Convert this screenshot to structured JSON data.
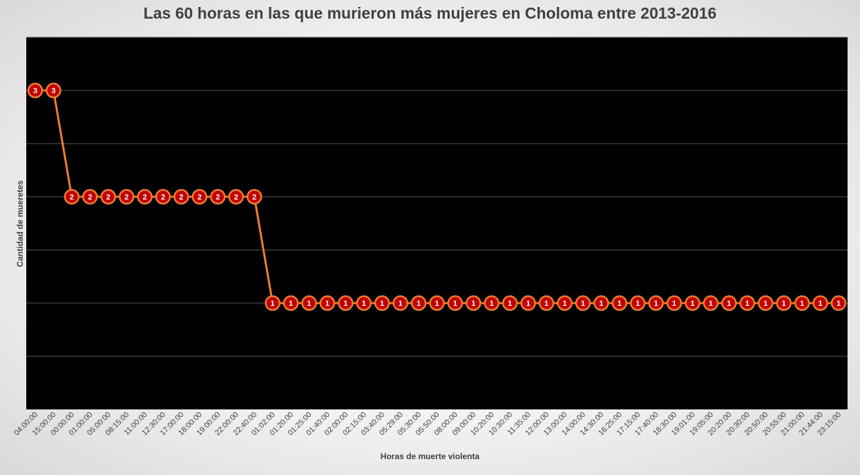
{
  "chart_data": {
    "type": "line",
    "title": "Las 60 horas en las que murieron más mujeres en Choloma entre 2013-2016",
    "xlabel": "Horas de muerte violenta",
    "ylabel": "Cantidad de mueretes",
    "ylim": [
      0,
      3.5
    ],
    "grid": true,
    "colors": {
      "line": "#ed7d31",
      "marker_fill": "#c00000",
      "marker_stroke": "#ed7d31",
      "plot_bg": "#000000",
      "gridline": "#595959"
    },
    "categories": [
      "04:00:00",
      "15:00:00",
      "00:00:00",
      "01:00:00",
      "05:00:00",
      "08:15:00",
      "11:00:00",
      "12:30:00",
      "17:00:00",
      "18:00:00",
      "19:00:00",
      "22:00:00",
      "22:40:00",
      "01:02:00",
      "01:20:00",
      "01:25:00",
      "01:40:00",
      "02:00:00",
      "02:15:00",
      "03:40:00",
      "05:29:00",
      "05:30:00",
      "05:50:00",
      "08:00:00",
      "09:00:00",
      "10:20:00",
      "10:30:00",
      "11:35:00",
      "12:00:00",
      "13:00:00",
      "14:00:00",
      "14:30:00",
      "16:25:00",
      "17:15:00",
      "17:40:00",
      "18:30:00",
      "19:01:00",
      "19:05:00",
      "20:20:00",
      "20:30:00",
      "20:50:00",
      "20:55:00",
      "21:00:00",
      "21:44:00",
      "23:15:00"
    ],
    "series": [
      {
        "values": [
          3,
          3,
          2,
          2,
          2,
          2,
          2,
          2,
          2,
          2,
          2,
          2,
          2,
          1,
          1,
          1,
          1,
          1,
          1,
          1,
          1,
          1,
          1,
          1,
          1,
          1,
          1,
          1,
          1,
          1,
          1,
          1,
          1,
          1,
          1,
          1,
          1,
          1,
          1,
          1,
          1,
          1,
          1,
          1,
          1
        ]
      }
    ]
  }
}
